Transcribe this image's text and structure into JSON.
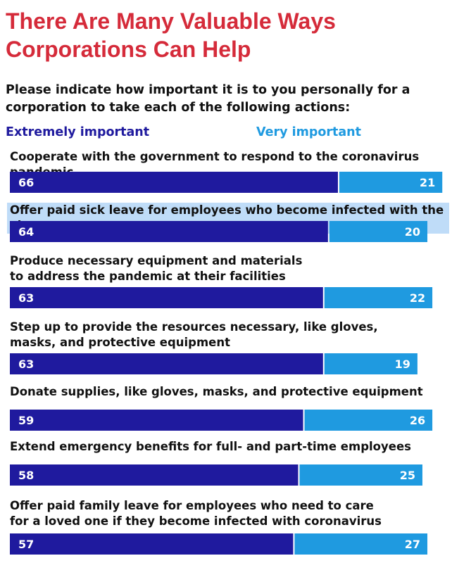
{
  "colors": {
    "title": "#d52b3a",
    "extremely": "#1f1a9e",
    "very": "#1f9ae0",
    "highlight": "#bfdcf8"
  },
  "chart_data": {
    "type": "bar",
    "orientation": "horizontal",
    "stacked": true,
    "title": "There Are Many Valuable Ways Corporations Can Help",
    "subtitle": "Please indicate how important it is to you personally for a corporation to take each of the following actions:",
    "xlim": [
      0,
      100
    ],
    "grid": false,
    "legend_position": "top",
    "categories": [
      "Cooperate with the government to respond to the coronavirus pandemic",
      "Offer paid sick leave for employees who become infected with the virus",
      "Produce necessary equipment and materials\nto address the pandemic at their facilities",
      "Step up to provide the resources necessary, like gloves,\nmasks, and protective equipment",
      "Donate supplies, like gloves, masks, and protective equipment",
      "Extend emergency benefits for full- and part-time employees",
      "Offer paid family leave for employees who need to care\nfor a loved one if they become infected with coronavirus"
    ],
    "series": [
      {
        "name": "Extremely important",
        "values": [
          66,
          64,
          63,
          63,
          59,
          58,
          57
        ]
      },
      {
        "name": "Very important",
        "values": [
          21,
          20,
          22,
          19,
          26,
          25,
          27
        ]
      }
    ]
  }
}
